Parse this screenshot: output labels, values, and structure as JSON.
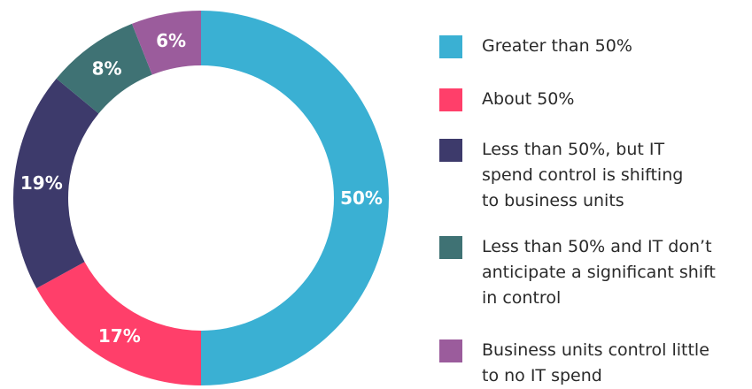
{
  "chart_data": {
    "type": "pie",
    "style": "donut",
    "categories": [
      "Greater than 50%",
      "About 50%",
      "Less than 50%, but IT\nspend control is shifting\nto business units",
      "Less than 50% and IT don’t\nanticipate a significant shift\nin control",
      "Business units control little\nto no IT spend"
    ],
    "values": [
      50,
      17,
      19,
      8,
      6
    ],
    "value_labels": [
      "50%",
      "17%",
      "19%",
      "8%",
      "6%"
    ],
    "colors": [
      "#3ab0d3",
      "#ff3f6a",
      "#3d3a6b",
      "#3f7274",
      "#9b5c9c"
    ],
    "legend_position": "right"
  }
}
